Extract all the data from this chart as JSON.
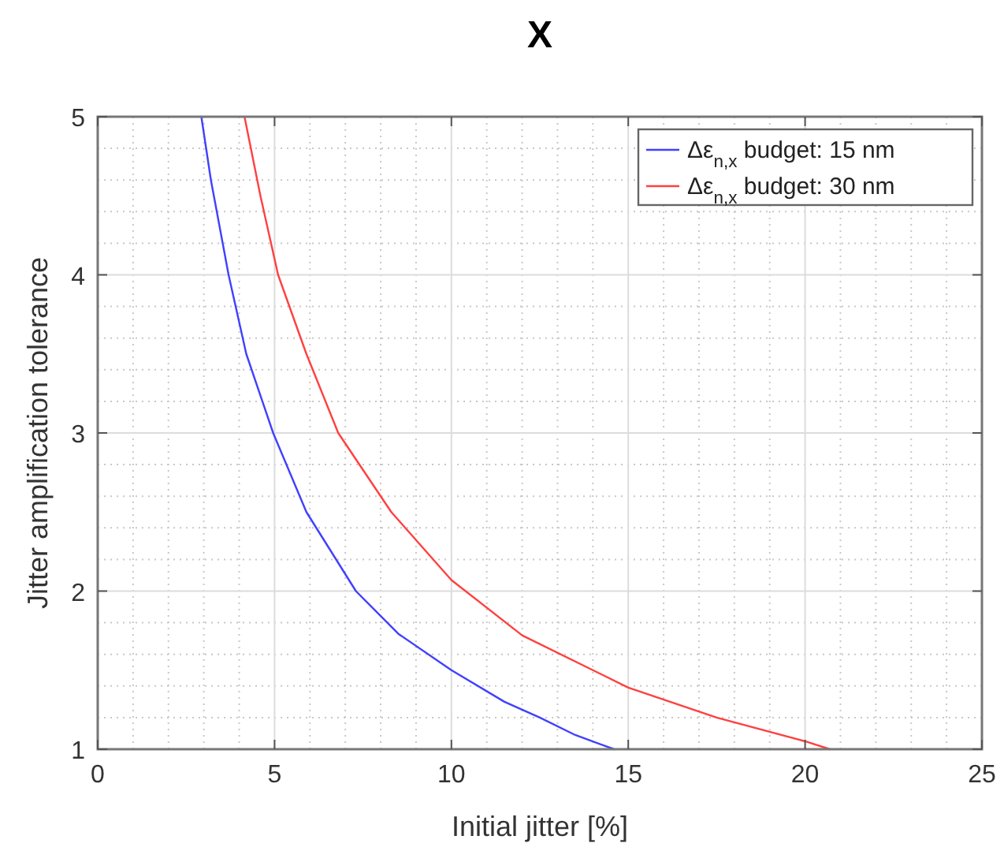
{
  "chart_data": {
    "type": "line",
    "title": "X",
    "xlabel": "Initial jitter [%]",
    "ylabel": "Jitter amplification tolerance",
    "xlim": [
      0,
      25
    ],
    "xticks": [
      0,
      5,
      10,
      15,
      20,
      25
    ],
    "ylim": [
      1,
      5
    ],
    "yticks": [
      1,
      2,
      3,
      4,
      5
    ],
    "grid": true,
    "legend": "top right",
    "series": [
      {
        "name": "Δε$_{n,x}$ budget: 15 nm",
        "color": "#4040ff",
        "x": [
          2.93,
          3.2,
          3.7,
          4.2,
          4.96,
          5.9,
          7.3,
          8.5,
          10,
          11.5,
          12.5,
          13.5,
          14.6
        ],
        "values": [
          5,
          4.6,
          4,
          3.5,
          3,
          2.5,
          2,
          1.73,
          1.5,
          1.3,
          1.2,
          1.09,
          1
        ]
      },
      {
        "name": "Δε$_{n,x}$ budget: 30 nm",
        "color": "#ff4040",
        "x": [
          4.15,
          4.6,
          5.1,
          5.9,
          6.8,
          8.3,
          10,
          12,
          15,
          17.5,
          20,
          20.7
        ],
        "values": [
          5,
          4.5,
          4,
          3.5,
          3,
          2.5,
          2.07,
          1.72,
          1.39,
          1.2,
          1.05,
          1
        ]
      }
    ]
  }
}
